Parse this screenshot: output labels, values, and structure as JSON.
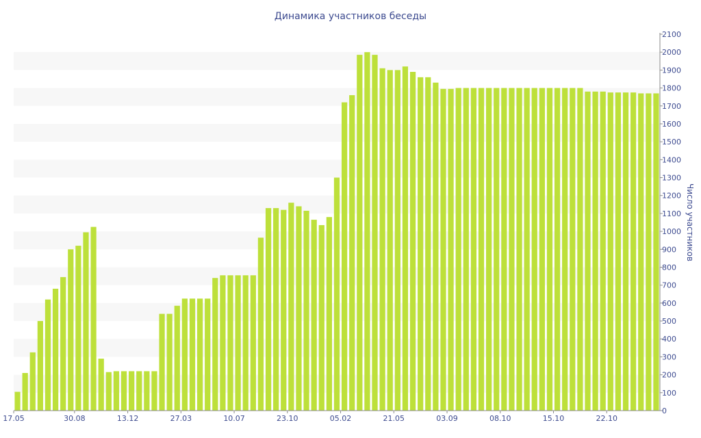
{
  "chart_data": {
    "type": "bar",
    "title": "Динамика участников беседы",
    "xlabel": "",
    "ylabel": "Число участников",
    "ylim": [
      0,
      2100
    ],
    "yticks": [
      0,
      100,
      200,
      300,
      400,
      500,
      600,
      700,
      800,
      900,
      1000,
      1100,
      1200,
      1300,
      1400,
      1500,
      1600,
      1700,
      1800,
      1900,
      2000,
      2100
    ],
    "y_axis_position": "right",
    "grid": "alternating horizontal bands",
    "x_tick_labels": [
      {
        "index": 0,
        "label": "17.05"
      },
      {
        "index": 8,
        "label": "30.08"
      },
      {
        "index": 15,
        "label": "13.12"
      },
      {
        "index": 22,
        "label": "27.03"
      },
      {
        "index": 29,
        "label": "10.07"
      },
      {
        "index": 36,
        "label": "23.10"
      },
      {
        "index": 43,
        "label": "05.02"
      },
      {
        "index": 50,
        "label": "21.05"
      },
      {
        "index": 57,
        "label": "03.09"
      },
      {
        "index": 64,
        "label": "08.10"
      },
      {
        "index": 71,
        "label": "15.10"
      },
      {
        "index": 78,
        "label": "22.10"
      }
    ],
    "values": [
      105,
      210,
      325,
      500,
      620,
      680,
      745,
      900,
      920,
      995,
      1025,
      290,
      215,
      220,
      220,
      220,
      220,
      220,
      220,
      540,
      540,
      585,
      625,
      625,
      625,
      625,
      740,
      755,
      755,
      755,
      755,
      755,
      965,
      1130,
      1130,
      1120,
      1160,
      1140,
      1115,
      1065,
      1035,
      1080,
      1300,
      1720,
      1760,
      1985,
      2000,
      1985,
      1910,
      1900,
      1900,
      1920,
      1890,
      1860,
      1860,
      1830,
      1795,
      1795,
      1800,
      1800,
      1800,
      1800,
      1800,
      1800,
      1800,
      1800,
      1800,
      1800,
      1800,
      1800,
      1800,
      1800,
      1800,
      1800,
      1800,
      1780,
      1780,
      1780,
      1775,
      1775,
      1775,
      1775,
      1770,
      1770,
      1770
    ],
    "colors": {
      "bar": "#bde03a",
      "text": "#3c4a8f",
      "band": "#f7f7f7",
      "axis": "#8a8a8a"
    }
  }
}
